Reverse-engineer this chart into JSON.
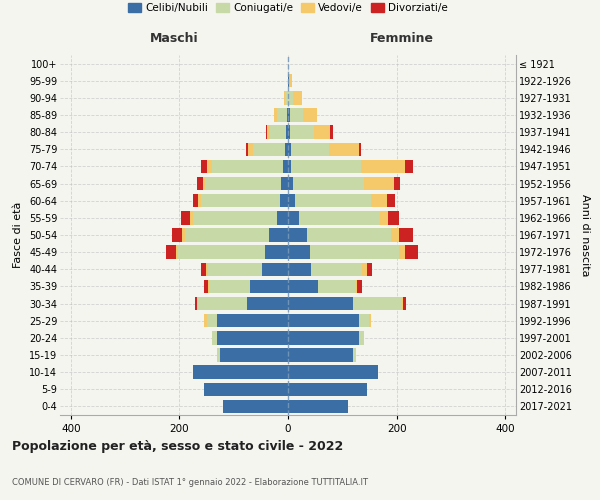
{
  "age_groups": [
    "0-4",
    "5-9",
    "10-14",
    "15-19",
    "20-24",
    "25-29",
    "30-34",
    "35-39",
    "40-44",
    "45-49",
    "50-54",
    "55-59",
    "60-64",
    "65-69",
    "70-74",
    "75-79",
    "80-84",
    "85-89",
    "90-94",
    "95-99",
    "100+"
  ],
  "birth_years": [
    "2017-2021",
    "2012-2016",
    "2007-2011",
    "2002-2006",
    "1997-2001",
    "1992-1996",
    "1987-1991",
    "1982-1986",
    "1977-1981",
    "1972-1976",
    "1967-1971",
    "1962-1966",
    "1957-1961",
    "1952-1956",
    "1947-1951",
    "1942-1946",
    "1937-1941",
    "1932-1936",
    "1927-1931",
    "1922-1926",
    "≤ 1921"
  ],
  "maschi": {
    "celibi": [
      120,
      155,
      175,
      125,
      130,
      130,
      75,
      70,
      48,
      42,
      35,
      20,
      15,
      12,
      10,
      5,
      3,
      2,
      0,
      0,
      0
    ],
    "coniugati": [
      0,
      0,
      0,
      5,
      10,
      20,
      90,
      75,
      100,
      160,
      155,
      155,
      145,
      140,
      130,
      60,
      30,
      18,
      5,
      0,
      0
    ],
    "vedovi": [
      0,
      0,
      0,
      0,
      0,
      5,
      2,
      2,
      3,
      5,
      5,
      5,
      5,
      5,
      10,
      8,
      5,
      5,
      2,
      0,
      0
    ],
    "divorziati": [
      0,
      0,
      0,
      0,
      0,
      0,
      5,
      8,
      10,
      18,
      18,
      18,
      10,
      10,
      10,
      5,
      3,
      0,
      0,
      0,
      0
    ]
  },
  "femmine": {
    "nubili": [
      110,
      145,
      165,
      120,
      130,
      130,
      120,
      55,
      42,
      40,
      35,
      20,
      12,
      10,
      5,
      5,
      3,
      3,
      0,
      2,
      0
    ],
    "coniugate": [
      0,
      0,
      0,
      5,
      10,
      20,
      90,
      70,
      95,
      165,
      155,
      150,
      140,
      130,
      130,
      70,
      45,
      25,
      10,
      0,
      0
    ],
    "vedove": [
      0,
      0,
      0,
      0,
      0,
      2,
      2,
      3,
      8,
      10,
      15,
      15,
      30,
      55,
      80,
      55,
      30,
      25,
      15,
      5,
      0
    ],
    "divorziate": [
      0,
      0,
      0,
      0,
      0,
      0,
      5,
      8,
      10,
      25,
      25,
      20,
      15,
      12,
      15,
      5,
      5,
      0,
      0,
      0,
      0
    ]
  },
  "colors": {
    "celibi": "#3a6ea5",
    "coniugati": "#c8d9a8",
    "vedovi": "#f5c96a",
    "divorziati": "#cc2222"
  },
  "title": "Popolazione per età, sesso e stato civile - 2022",
  "subtitle": "COMUNE DI CERVARO (FR) - Dati ISTAT 1° gennaio 2022 - Elaborazione TUTTITALIA.IT",
  "xlabel_left": "Maschi",
  "xlabel_right": "Femmine",
  "ylabel_left": "Fasce di età",
  "ylabel_right": "Anni di nascita",
  "xlim": 420,
  "background_color": "#f5f5f0",
  "legend_labels": [
    "Celibi/Nubili",
    "Coniugati/e",
    "Vedovi/e",
    "Divorziati/e"
  ]
}
